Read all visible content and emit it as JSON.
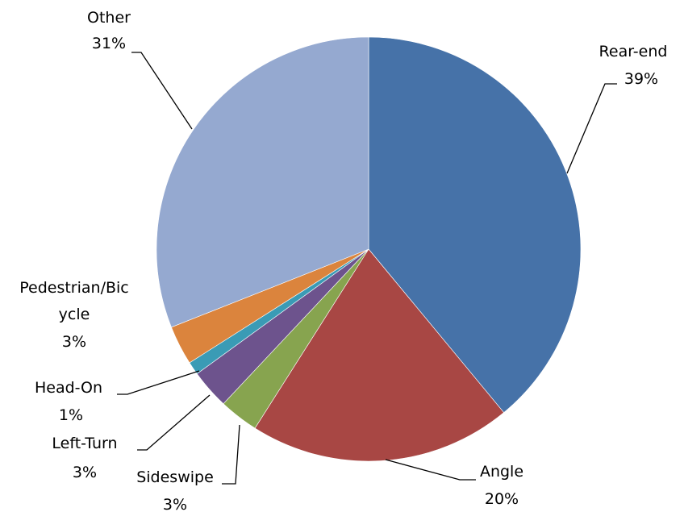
{
  "chart_data": {
    "type": "pie",
    "title": "",
    "start_angle_deg": 0,
    "direction": "clockwise",
    "slices": [
      {
        "name": "Rear-end",
        "value": 39,
        "label": "39%",
        "color": "#4672A8"
      },
      {
        "name": "Angle",
        "value": 20,
        "label": "20%",
        "color": "#A84744"
      },
      {
        "name": "Sideswipe",
        "value": 3,
        "label": "3%",
        "color": "#87A44F"
      },
      {
        "name": "Left-Turn",
        "value": 3,
        "label": "3%",
        "color": "#6D538D"
      },
      {
        "name": "Head-On",
        "value": 1,
        "label": "1%",
        "color": "#3A9BB5"
      },
      {
        "name": "Pedestrian/Bicycle",
        "value": 3,
        "label": "3%",
        "color": "#DB843D"
      },
      {
        "name": "Other",
        "value": 31,
        "label": "31%",
        "color": "#95A9D0"
      }
    ],
    "legend": "none"
  },
  "labels": {
    "rear_end": {
      "name": "Rear-end",
      "pct": "39%"
    },
    "angle": {
      "name": "Angle",
      "pct": "20%"
    },
    "sideswipe": {
      "name": "Sideswipe",
      "pct": "3%"
    },
    "left_turn": {
      "name": "Left-Turn",
      "pct": "3%"
    },
    "head_on": {
      "name": "Head-On",
      "pct": "1%"
    },
    "ped_bike": {
      "name_line1": "Pedestrian/Bic",
      "name_line2": "ycle",
      "pct": "3%"
    },
    "other": {
      "name": "Other",
      "pct": "31%"
    }
  }
}
